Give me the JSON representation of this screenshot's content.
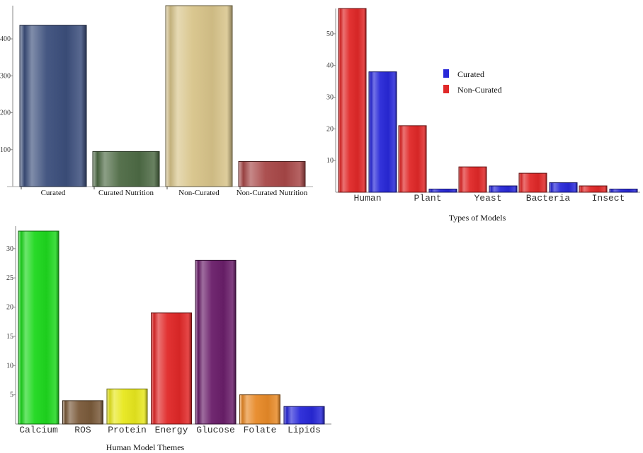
{
  "chart_data": [
    {
      "type": "bar",
      "title": "",
      "xlabel": "",
      "ylabel": "",
      "categories": [
        "Curated",
        "Curated Nutrition",
        "Non-Curated",
        "Non-Curated Nutrition"
      ],
      "values": [
        437,
        95,
        490,
        68
      ],
      "colors": [
        "#3c4f7c",
        "#4e6b45",
        "#d8c48a",
        "#a84848"
      ],
      "y_ticks": [
        100,
        200,
        300,
        400
      ],
      "ylim": [
        0,
        490
      ],
      "grid": false
    },
    {
      "type": "bar",
      "title": "",
      "xlabel": "Types of Models",
      "ylabel": "",
      "categories": [
        "Human",
        "Plant",
        "Yeast",
        "Bacteria",
        "Insect"
      ],
      "series": [
        {
          "name": "Non-Curated",
          "color": "#e02828",
          "values": [
            58,
            21,
            8,
            6,
            2
          ]
        },
        {
          "name": "Curated",
          "color": "#2828d8",
          "values": [
            38,
            1,
            2,
            3,
            1
          ]
        }
      ],
      "y_ticks": [
        10,
        20,
        30,
        40,
        50
      ],
      "ylim": [
        0,
        58
      ],
      "legend_position": "top-right",
      "legend": [
        "Curated",
        "Non-Curated"
      ],
      "grid": false
    },
    {
      "type": "bar",
      "title": "",
      "xlabel": "Human Model Themes",
      "ylabel": "",
      "categories": [
        "Calcium",
        "ROS",
        "Protein",
        "Energy",
        "Glucose",
        "Folate",
        "Lipids"
      ],
      "values": [
        33,
        4,
        6,
        19,
        28,
        5,
        3
      ],
      "colors": [
        "#1ed81e",
        "#7a5a3a",
        "#e8e81e",
        "#e02828",
        "#6a1e6a",
        "#e88a28",
        "#2828d8"
      ],
      "y_ticks": [
        5,
        10,
        15,
        20,
        25,
        30
      ],
      "ylim": [
        0,
        33
      ],
      "grid": false
    }
  ]
}
